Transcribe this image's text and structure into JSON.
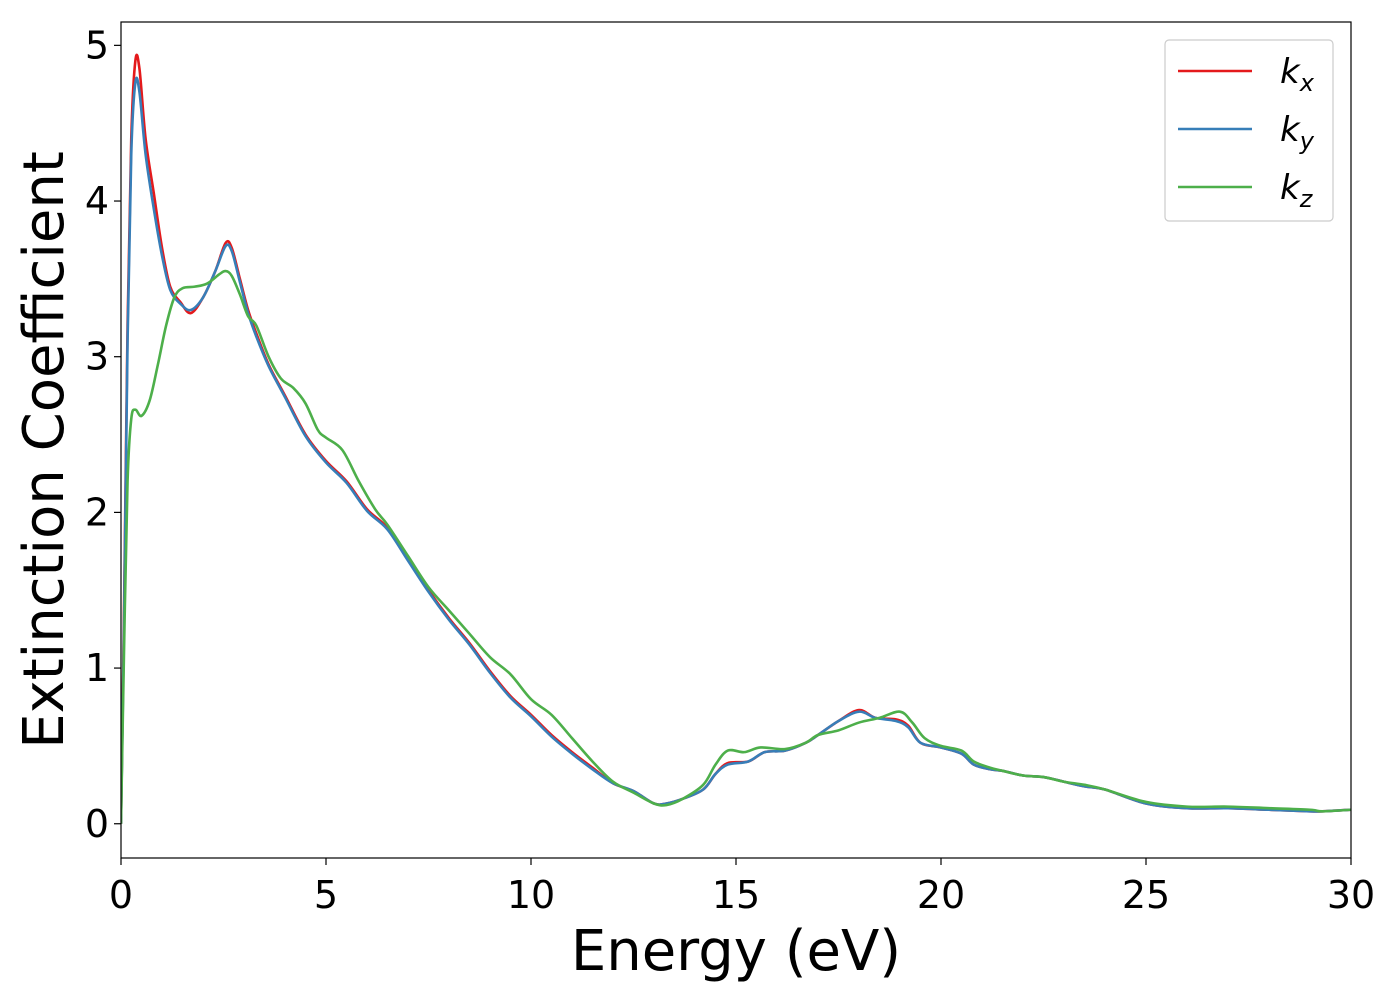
{
  "chart_data": {
    "type": "line",
    "xlabel": "Energy (eV)",
    "ylabel": "Extinction Coefficient",
    "xlim": [
      0,
      30
    ],
    "ylim": [
      -0.22,
      5.15
    ],
    "xticks": [
      0,
      5,
      10,
      15,
      20,
      25,
      30
    ],
    "yticks": [
      0,
      1,
      2,
      3,
      4,
      5
    ],
    "grid": false,
    "legend_position": "top-right",
    "series": [
      {
        "name": "k",
        "subscript": "x",
        "color": "#e41a1c",
        "points": [
          [
            0.0,
            0.0
          ],
          [
            0.08,
            1.5
          ],
          [
            0.16,
            3.2
          ],
          [
            0.25,
            4.4
          ],
          [
            0.35,
            4.9
          ],
          [
            0.45,
            4.85
          ],
          [
            0.6,
            4.4
          ],
          [
            0.8,
            4.05
          ],
          [
            1.0,
            3.7
          ],
          [
            1.2,
            3.45
          ],
          [
            1.45,
            3.35
          ],
          [
            1.7,
            3.28
          ],
          [
            2.0,
            3.38
          ],
          [
            2.3,
            3.55
          ],
          [
            2.55,
            3.73
          ],
          [
            2.7,
            3.7
          ],
          [
            2.9,
            3.5
          ],
          [
            3.1,
            3.3
          ],
          [
            3.3,
            3.15
          ],
          [
            3.6,
            2.95
          ],
          [
            4.0,
            2.75
          ],
          [
            4.5,
            2.5
          ],
          [
            5.0,
            2.33
          ],
          [
            5.5,
            2.2
          ],
          [
            6.0,
            2.02
          ],
          [
            6.5,
            1.9
          ],
          [
            7.0,
            1.7
          ],
          [
            7.5,
            1.5
          ],
          [
            8.0,
            1.32
          ],
          [
            8.5,
            1.16
          ],
          [
            9.0,
            0.98
          ],
          [
            9.5,
            0.82
          ],
          [
            10.0,
            0.7
          ],
          [
            10.5,
            0.57
          ],
          [
            11.0,
            0.46
          ],
          [
            11.5,
            0.36
          ],
          [
            12.0,
            0.26
          ],
          [
            12.5,
            0.21
          ],
          [
            13.0,
            0.13
          ],
          [
            13.3,
            0.13
          ],
          [
            13.7,
            0.16
          ],
          [
            14.2,
            0.22
          ],
          [
            14.5,
            0.32
          ],
          [
            14.8,
            0.39
          ],
          [
            15.3,
            0.4
          ],
          [
            15.7,
            0.46
          ],
          [
            16.2,
            0.47
          ],
          [
            16.7,
            0.52
          ],
          [
            17.0,
            0.57
          ],
          [
            17.5,
            0.66
          ],
          [
            18.0,
            0.73
          ],
          [
            18.4,
            0.68
          ],
          [
            18.9,
            0.67
          ],
          [
            19.2,
            0.63
          ],
          [
            19.5,
            0.52
          ],
          [
            20.0,
            0.49
          ],
          [
            20.5,
            0.45
          ],
          [
            20.8,
            0.38
          ],
          [
            21.2,
            0.35
          ],
          [
            21.5,
            0.34
          ],
          [
            22.0,
            0.31
          ],
          [
            22.5,
            0.3
          ],
          [
            23.0,
            0.27
          ],
          [
            23.5,
            0.24
          ],
          [
            24.0,
            0.22
          ],
          [
            25.0,
            0.13
          ],
          [
            26.0,
            0.1
          ],
          [
            27.0,
            0.1
          ],
          [
            28.0,
            0.09
          ],
          [
            29.0,
            0.08
          ],
          [
            29.3,
            0.08
          ],
          [
            30.0,
            0.09
          ]
        ]
      },
      {
        "name": "k",
        "subscript": "y",
        "color": "#377eb8",
        "points": [
          [
            0.0,
            0.0
          ],
          [
            0.08,
            1.4
          ],
          [
            0.16,
            3.1
          ],
          [
            0.25,
            4.3
          ],
          [
            0.35,
            4.76
          ],
          [
            0.45,
            4.7
          ],
          [
            0.6,
            4.3
          ],
          [
            0.8,
            3.95
          ],
          [
            1.0,
            3.65
          ],
          [
            1.2,
            3.43
          ],
          [
            1.45,
            3.34
          ],
          [
            1.7,
            3.3
          ],
          [
            2.0,
            3.38
          ],
          [
            2.3,
            3.55
          ],
          [
            2.55,
            3.71
          ],
          [
            2.7,
            3.68
          ],
          [
            2.9,
            3.48
          ],
          [
            3.1,
            3.28
          ],
          [
            3.3,
            3.13
          ],
          [
            3.6,
            2.94
          ],
          [
            4.0,
            2.74
          ],
          [
            4.5,
            2.49
          ],
          [
            5.0,
            2.32
          ],
          [
            5.5,
            2.19
          ],
          [
            6.0,
            2.01
          ],
          [
            6.5,
            1.89
          ],
          [
            7.0,
            1.69
          ],
          [
            7.5,
            1.49
          ],
          [
            8.0,
            1.31
          ],
          [
            8.5,
            1.15
          ],
          [
            9.0,
            0.97
          ],
          [
            9.5,
            0.81
          ],
          [
            10.0,
            0.69
          ],
          [
            10.5,
            0.56
          ],
          [
            11.0,
            0.45
          ],
          [
            11.5,
            0.35
          ],
          [
            12.0,
            0.26
          ],
          [
            12.5,
            0.21
          ],
          [
            13.0,
            0.13
          ],
          [
            13.3,
            0.13
          ],
          [
            13.7,
            0.16
          ],
          [
            14.2,
            0.22
          ],
          [
            14.5,
            0.32
          ],
          [
            14.8,
            0.38
          ],
          [
            15.3,
            0.4
          ],
          [
            15.7,
            0.46
          ],
          [
            16.2,
            0.47
          ],
          [
            16.7,
            0.52
          ],
          [
            17.0,
            0.57
          ],
          [
            17.5,
            0.66
          ],
          [
            18.0,
            0.72
          ],
          [
            18.4,
            0.68
          ],
          [
            18.9,
            0.66
          ],
          [
            19.2,
            0.62
          ],
          [
            19.5,
            0.52
          ],
          [
            20.0,
            0.49
          ],
          [
            20.5,
            0.45
          ],
          [
            20.8,
            0.38
          ],
          [
            21.2,
            0.35
          ],
          [
            21.5,
            0.34
          ],
          [
            22.0,
            0.31
          ],
          [
            22.5,
            0.3
          ],
          [
            23.0,
            0.27
          ],
          [
            23.5,
            0.24
          ],
          [
            24.0,
            0.22
          ],
          [
            25.0,
            0.13
          ],
          [
            26.0,
            0.1
          ],
          [
            27.0,
            0.1
          ],
          [
            28.0,
            0.09
          ],
          [
            29.0,
            0.08
          ],
          [
            29.3,
            0.08
          ],
          [
            30.0,
            0.09
          ]
        ]
      },
      {
        "name": "k",
        "subscript": "z",
        "color": "#4daf4a",
        "points": [
          [
            0.0,
            0.0
          ],
          [
            0.08,
            1.2
          ],
          [
            0.16,
            2.2
          ],
          [
            0.25,
            2.6
          ],
          [
            0.35,
            2.66
          ],
          [
            0.5,
            2.62
          ],
          [
            0.7,
            2.72
          ],
          [
            0.9,
            2.95
          ],
          [
            1.1,
            3.2
          ],
          [
            1.3,
            3.38
          ],
          [
            1.5,
            3.44
          ],
          [
            1.8,
            3.45
          ],
          [
            2.1,
            3.47
          ],
          [
            2.4,
            3.53
          ],
          [
            2.55,
            3.55
          ],
          [
            2.7,
            3.52
          ],
          [
            2.9,
            3.4
          ],
          [
            3.1,
            3.26
          ],
          [
            3.3,
            3.2
          ],
          [
            3.6,
            3.0
          ],
          [
            3.9,
            2.86
          ],
          [
            4.2,
            2.8
          ],
          [
            4.5,
            2.7
          ],
          [
            4.8,
            2.53
          ],
          [
            5.0,
            2.48
          ],
          [
            5.4,
            2.4
          ],
          [
            5.8,
            2.2
          ],
          [
            6.2,
            2.02
          ],
          [
            6.5,
            1.92
          ],
          [
            7.0,
            1.72
          ],
          [
            7.5,
            1.52
          ],
          [
            8.0,
            1.37
          ],
          [
            8.5,
            1.22
          ],
          [
            9.0,
            1.07
          ],
          [
            9.5,
            0.96
          ],
          [
            10.0,
            0.8
          ],
          [
            10.5,
            0.7
          ],
          [
            11.0,
            0.55
          ],
          [
            11.5,
            0.4
          ],
          [
            12.0,
            0.27
          ],
          [
            12.5,
            0.2
          ],
          [
            13.0,
            0.13
          ],
          [
            13.3,
            0.12
          ],
          [
            13.7,
            0.16
          ],
          [
            14.2,
            0.25
          ],
          [
            14.5,
            0.38
          ],
          [
            14.8,
            0.47
          ],
          [
            15.2,
            0.46
          ],
          [
            15.6,
            0.49
          ],
          [
            16.2,
            0.48
          ],
          [
            16.7,
            0.52
          ],
          [
            17.0,
            0.57
          ],
          [
            17.5,
            0.6
          ],
          [
            18.0,
            0.65
          ],
          [
            18.5,
            0.68
          ],
          [
            19.0,
            0.72
          ],
          [
            19.3,
            0.65
          ],
          [
            19.6,
            0.55
          ],
          [
            20.0,
            0.5
          ],
          [
            20.5,
            0.47
          ],
          [
            20.8,
            0.4
          ],
          [
            21.2,
            0.36
          ],
          [
            21.5,
            0.34
          ],
          [
            22.0,
            0.31
          ],
          [
            22.5,
            0.3
          ],
          [
            23.0,
            0.27
          ],
          [
            23.5,
            0.25
          ],
          [
            24.0,
            0.22
          ],
          [
            25.0,
            0.14
          ],
          [
            26.0,
            0.11
          ],
          [
            27.0,
            0.11
          ],
          [
            28.0,
            0.1
          ],
          [
            29.0,
            0.09
          ],
          [
            29.3,
            0.08
          ],
          [
            30.0,
            0.09
          ]
        ]
      }
    ]
  }
}
